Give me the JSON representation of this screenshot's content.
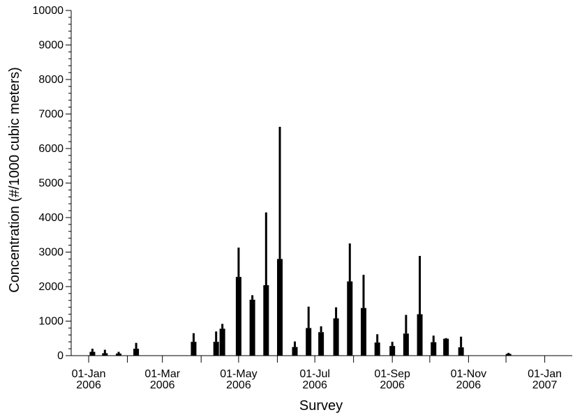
{
  "chart_data": {
    "type": "bar",
    "title": "",
    "xlabel": "Survey",
    "ylabel": "Concentration (#/1000 cubic meters)",
    "ylim": [
      0,
      10000
    ],
    "xlim": [
      "2005-12-18",
      "2007-01-23"
    ],
    "grid": false,
    "legend": "none",
    "y_ticks": [
      0,
      1000,
      2000,
      3000,
      4000,
      5000,
      6000,
      7000,
      8000,
      9000,
      10000
    ],
    "y_minor_step": 200,
    "x_ticks": [
      {
        "date": "2006-01-01",
        "line1": "01-Jan",
        "line2": "2006",
        "labeled": true
      },
      {
        "date": "2006-02-01",
        "labeled": false
      },
      {
        "date": "2006-03-01",
        "line1": "01-Mar",
        "line2": "2006",
        "labeled": true
      },
      {
        "date": "2006-04-01",
        "labeled": false
      },
      {
        "date": "2006-05-01",
        "line1": "01-May",
        "line2": "2006",
        "labeled": true
      },
      {
        "date": "2006-06-01",
        "labeled": false
      },
      {
        "date": "2006-07-01",
        "line1": "01-Jul",
        "line2": "2006",
        "labeled": true
      },
      {
        "date": "2006-08-01",
        "labeled": false
      },
      {
        "date": "2006-09-01",
        "line1": "01-Sep",
        "line2": "2006",
        "labeled": true
      },
      {
        "date": "2006-10-01",
        "labeled": false
      },
      {
        "date": "2006-11-01",
        "line1": "01-Nov",
        "line2": "2006",
        "labeled": true
      },
      {
        "date": "2006-12-01",
        "labeled": false
      },
      {
        "date": "2007-01-01",
        "line1": "01-Jan",
        "line2": "2007",
        "labeled": true
      },
      {
        "date": "2007-02-01",
        "labeled": false
      }
    ],
    "series": [
      {
        "points": [
          {
            "x": "2006-01-04",
            "y": 110,
            "upper": 200
          },
          {
            "x": "2006-01-14",
            "y": 70,
            "upper": 170
          },
          {
            "x": "2006-01-25",
            "y": 60,
            "upper": 110
          },
          {
            "x": "2006-02-08",
            "y": 200,
            "upper": 370
          },
          {
            "x": "2006-03-26",
            "y": 400,
            "upper": 650
          },
          {
            "x": "2006-04-13",
            "y": 400,
            "upper": 700
          },
          {
            "x": "2006-04-18",
            "y": 780,
            "upper": 920
          },
          {
            "x": "2006-05-01",
            "y": 2280,
            "upper": 3130
          },
          {
            "x": "2006-05-12",
            "y": 1620,
            "upper": 1750
          },
          {
            "x": "2006-05-23",
            "y": 2040,
            "upper": 4150
          },
          {
            "x": "2006-06-03",
            "y": 2800,
            "upper": 6630
          },
          {
            "x": "2006-06-15",
            "y": 250,
            "upper": 410
          },
          {
            "x": "2006-06-26",
            "y": 800,
            "upper": 1420
          },
          {
            "x": "2006-07-06",
            "y": 680,
            "upper": 850
          },
          {
            "x": "2006-07-18",
            "y": 1080,
            "upper": 1400
          },
          {
            "x": "2006-07-29",
            "y": 2150,
            "upper": 3250
          },
          {
            "x": "2006-08-09",
            "y": 1380,
            "upper": 2340
          },
          {
            "x": "2006-08-20",
            "y": 380,
            "upper": 620
          },
          {
            "x": "2006-09-01",
            "y": 280,
            "upper": 400
          },
          {
            "x": "2006-09-12",
            "y": 640,
            "upper": 1180
          },
          {
            "x": "2006-09-23",
            "y": 1200,
            "upper": 2890
          },
          {
            "x": "2006-10-04",
            "y": 390,
            "upper": 580
          },
          {
            "x": "2006-10-14",
            "y": 490,
            "upper": 510
          },
          {
            "x": "2006-10-26",
            "y": 240,
            "upper": 550
          },
          {
            "x": "2006-12-03",
            "y": 50,
            "upper": 80
          }
        ]
      }
    ]
  }
}
